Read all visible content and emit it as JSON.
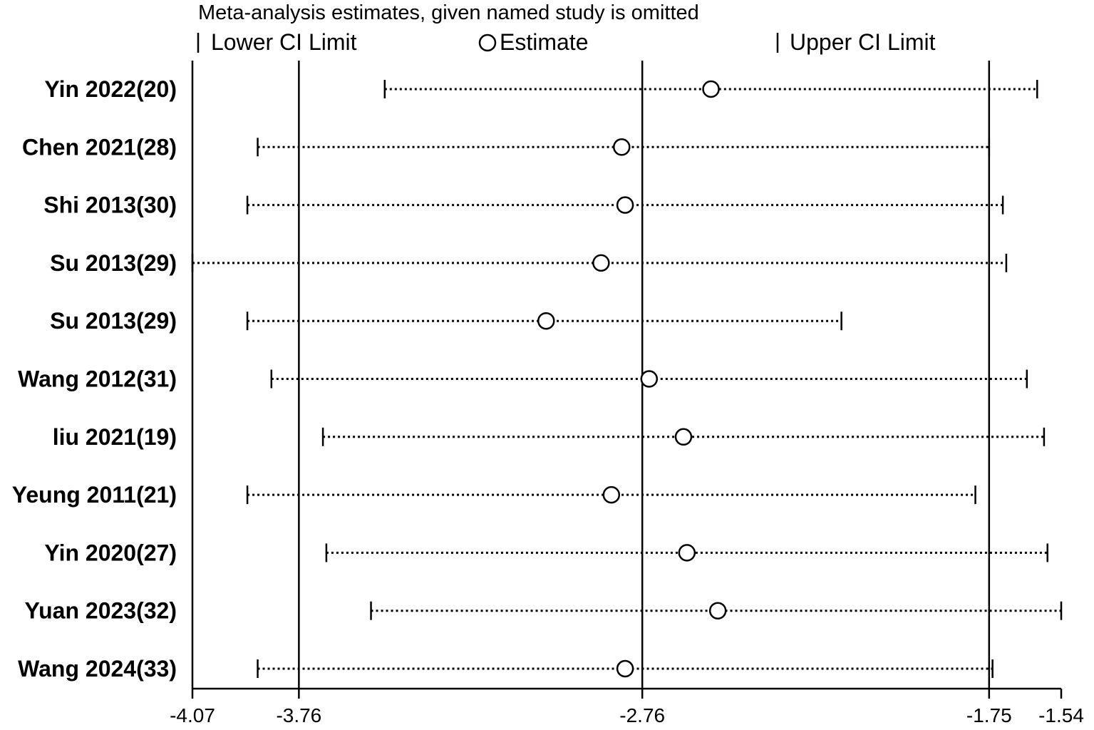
{
  "chart_data": {
    "type": "forest",
    "title": "Meta-analysis estimates, given named study is omitted",
    "legend": {
      "lower": "Lower CI Limit",
      "estimate": "Estimate",
      "upper": "Upper CI Limit",
      "placement": "top"
    },
    "xlim": [
      -4.07,
      -1.54
    ],
    "xticks": [
      -4.07,
      -3.76,
      -2.76,
      -1.75,
      -1.54
    ],
    "tick_labels": [
      "-4.07",
      "-3.76",
      "-2.76",
      "-1.75",
      "-1.54"
    ],
    "reference_lines": [
      -3.76,
      -2.76,
      -1.75
    ],
    "studies": [
      {
        "label": "Yin 2022(20)",
        "lower": -3.51,
        "estimate": -2.56,
        "upper": -1.61
      },
      {
        "label": "Chen 2021(28)",
        "lower": -3.88,
        "estimate": -2.82,
        "upper": -1.75
      },
      {
        "label": "Shi 2013(30)",
        "lower": -3.91,
        "estimate": -2.81,
        "upper": -1.71
      },
      {
        "label": "Su 2013(29)",
        "lower": -4.07,
        "estimate": -2.88,
        "upper": -1.7
      },
      {
        "label": "Su 2013(29)",
        "lower": -3.91,
        "estimate": -3.04,
        "upper": -2.18
      },
      {
        "label": "Wang 2012(31)",
        "lower": -3.84,
        "estimate": -2.74,
        "upper": -1.64
      },
      {
        "label": "liu 2021(19)",
        "lower": -3.69,
        "estimate": -2.64,
        "upper": -1.59
      },
      {
        "label": "Yeung 2011(21)",
        "lower": -3.91,
        "estimate": -2.85,
        "upper": -1.79
      },
      {
        "label": "Yin 2020(27)",
        "lower": -3.68,
        "estimate": -2.63,
        "upper": -1.58
      },
      {
        "label": "Yuan 2023(32)",
        "lower": -3.55,
        "estimate": -2.54,
        "upper": -1.54
      },
      {
        "label": "Wang 2024(33)",
        "lower": -3.88,
        "estimate": -2.81,
        "upper": -1.74
      }
    ]
  }
}
